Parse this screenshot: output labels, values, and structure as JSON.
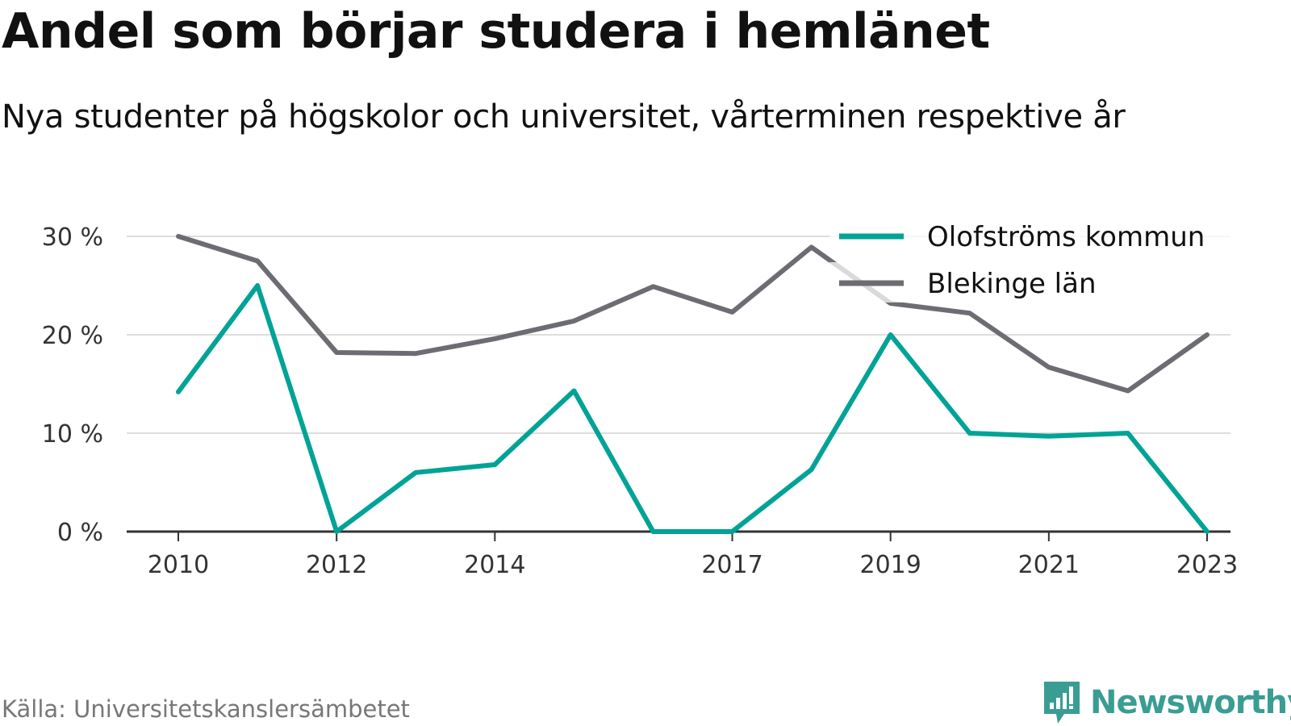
{
  "header": {
    "title": "Andel som börjar studera i hemlänet",
    "subtitle": "Nya studenter på högskolor och universitet, vårterminen respektive år"
  },
  "footer": {
    "source": "Källa: Universitetskanslersämbetet",
    "brand": "Newsworthy"
  },
  "colors": {
    "series_1": "#00a396",
    "series_2": "#6e6c73",
    "grid": "#dddddd",
    "axis": "#333333",
    "brand": "#3a9d94"
  },
  "chart_data": {
    "type": "line",
    "x": [
      2010,
      2011,
      2012,
      2013,
      2014,
      2015,
      2016,
      2017,
      2018,
      2019,
      2020,
      2021,
      2022,
      2023
    ],
    "x_tick_labels": [
      "2010",
      "2012",
      "2014",
      "2017",
      "2019",
      "2021",
      "2023"
    ],
    "y_tick_labels": [
      "0 %",
      "10 %",
      "20 %",
      "30 %"
    ],
    "y_ticks": [
      0,
      10,
      20,
      30
    ],
    "ylim": [
      0,
      30
    ],
    "grid": true,
    "legend_position": "top-right",
    "series": [
      {
        "name": "Olofströms kommun",
        "color": "#00a396",
        "values": [
          14.2,
          25.0,
          0.0,
          6.0,
          6.8,
          14.3,
          0.0,
          0.0,
          6.3,
          20.0,
          10.0,
          9.7,
          10.0,
          0.0
        ]
      },
      {
        "name": "Blekinge län",
        "color": "#6e6c73",
        "values": [
          30.0,
          27.5,
          18.2,
          18.1,
          19.6,
          21.4,
          24.9,
          22.3,
          28.9,
          23.2,
          22.2,
          16.7,
          14.3,
          20.0
        ]
      }
    ]
  }
}
